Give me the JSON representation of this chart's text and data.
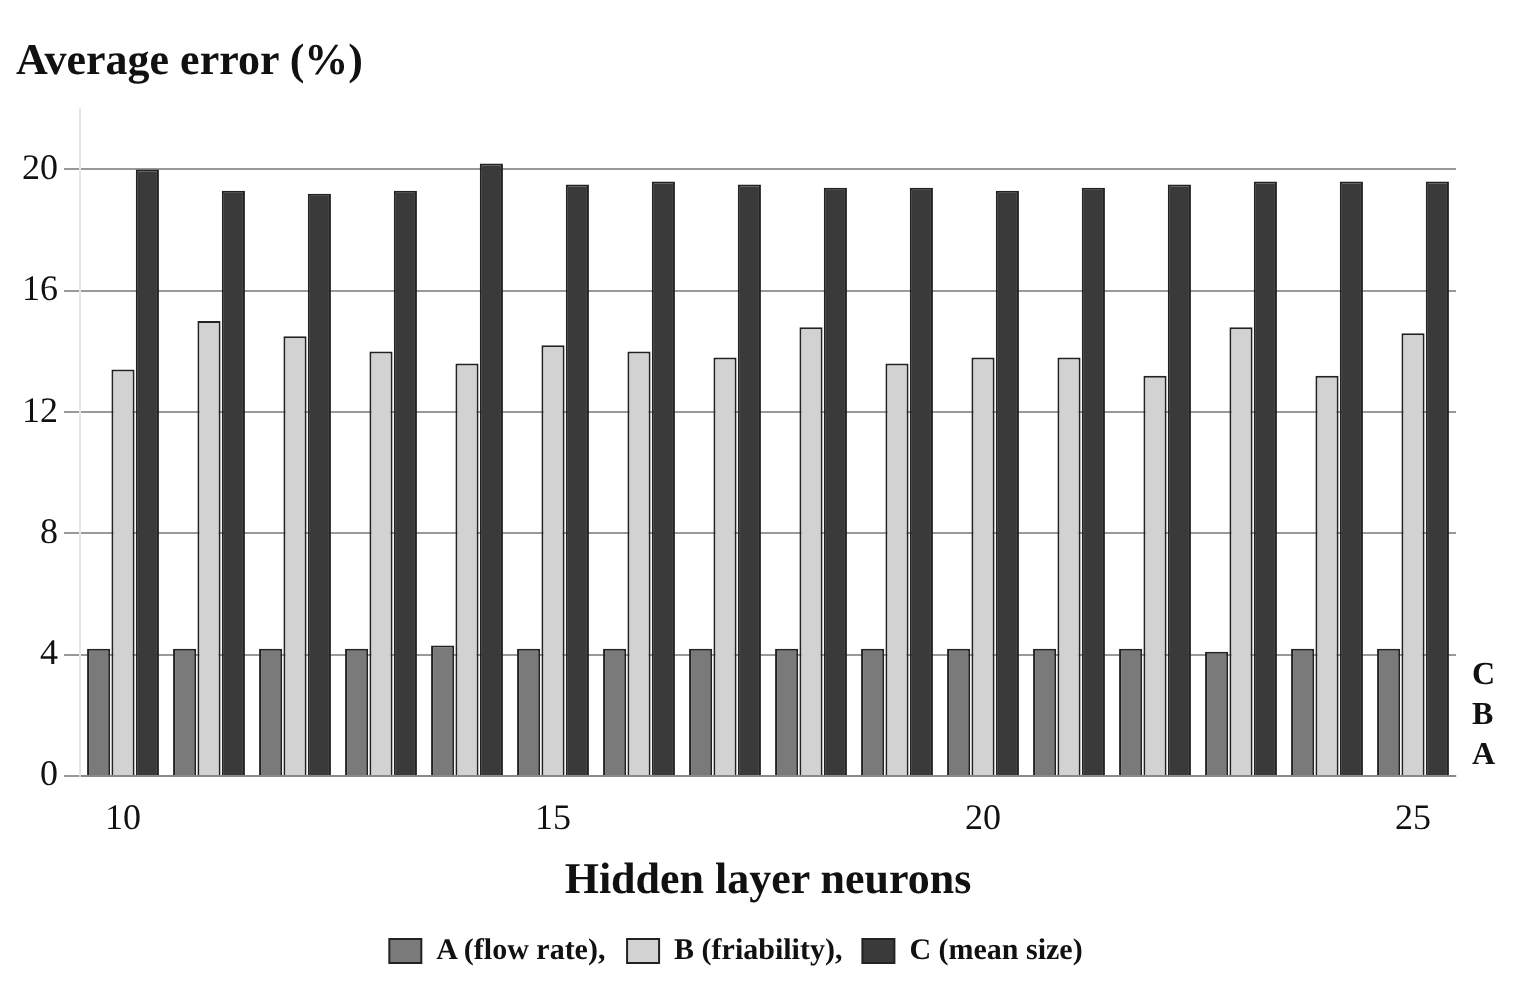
{
  "chart_data": {
    "type": "bar",
    "title": "Average error (%)",
    "xlabel": "Hidden layer neurons",
    "categories": [
      "10",
      null,
      null,
      null,
      null,
      "15",
      null,
      null,
      null,
      null,
      "20",
      null,
      null,
      null,
      null,
      "25"
    ],
    "series": [
      {
        "name": "A (flow rate),",
        "color": "#7a7a7a",
        "values": [
          4.2,
          4.2,
          4.2,
          4.2,
          4.3,
          4.2,
          4.2,
          4.2,
          4.2,
          4.2,
          4.2,
          4.2,
          4.2,
          4.1,
          4.2,
          4.2
        ]
      },
      {
        "name": "B (friability),",
        "color": "#d2d2d2",
        "values": [
          13.4,
          15.0,
          14.5,
          14.0,
          13.6,
          14.2,
          14.0,
          13.8,
          14.8,
          13.6,
          13.8,
          13.8,
          13.2,
          14.8,
          13.2,
          14.6
        ]
      },
      {
        "name": "C (mean size)",
        "color": "#3a3a3a",
        "values": [
          20.0,
          19.3,
          19.2,
          19.3,
          20.2,
          19.5,
          19.6,
          19.5,
          19.4,
          19.4,
          19.3,
          19.4,
          19.5,
          19.6,
          19.6,
          19.6
        ]
      }
    ],
    "ylim": [
      0,
      22
    ],
    "yticks": [
      0,
      4,
      8,
      12,
      16,
      20
    ],
    "grid": "y",
    "legend": "bottom",
    "annotations": [
      "A",
      "B",
      "C"
    ]
  }
}
